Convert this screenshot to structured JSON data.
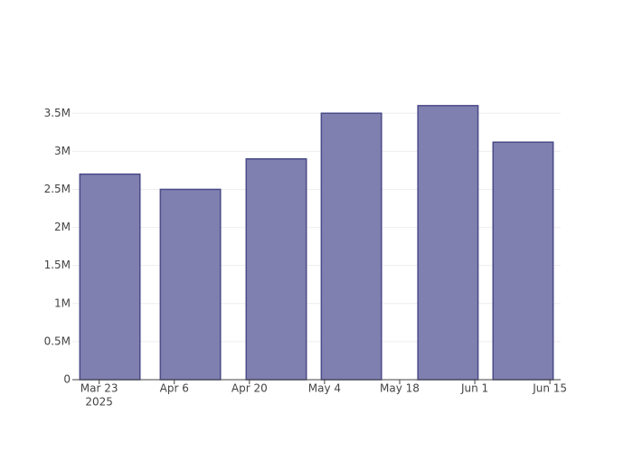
{
  "chart_data": {
    "type": "bar",
    "x": [
      "2025-03-25",
      "2025-04-09",
      "2025-04-25",
      "2025-05-09",
      "2025-05-27",
      "2025-06-10"
    ],
    "values": [
      2700000,
      2500000,
      2900000,
      3500000,
      3600000,
      3120000
    ],
    "color": "#7f7fb0",
    "edge_color": "#4b4b88",
    "xlim": [
      "2025-03-18",
      "2025-06-17"
    ],
    "xticks": [
      {
        "value": "2025-03-23",
        "label": "Mar 23"
      },
      {
        "value": "2025-04-06",
        "label": "Apr 6"
      },
      {
        "value": "2025-04-20",
        "label": "Apr 20"
      },
      {
        "value": "2025-05-04",
        "label": "May 4"
      },
      {
        "value": "2025-05-18",
        "label": "May 18"
      },
      {
        "value": "2025-06-01",
        "label": "Jun 1"
      },
      {
        "value": "2025-06-15",
        "label": "Jun 15"
      }
    ],
    "x_year_label": "2025",
    "ylim": [
      0,
      3800000
    ],
    "yticks": [
      0,
      {
        "value": 500000,
        "label": "0.5M"
      },
      {
        "value": 1000000,
        "label": "1M"
      },
      {
        "value": 1500000,
        "label": "1.5M"
      },
      {
        "value": 2000000,
        "label": "2M"
      },
      {
        "value": 2500000,
        "label": "2.5M"
      },
      {
        "value": 3000000,
        "label": "3M"
      },
      {
        "value": 3500000,
        "label": "3.5M"
      }
    ],
    "grid": true
  }
}
